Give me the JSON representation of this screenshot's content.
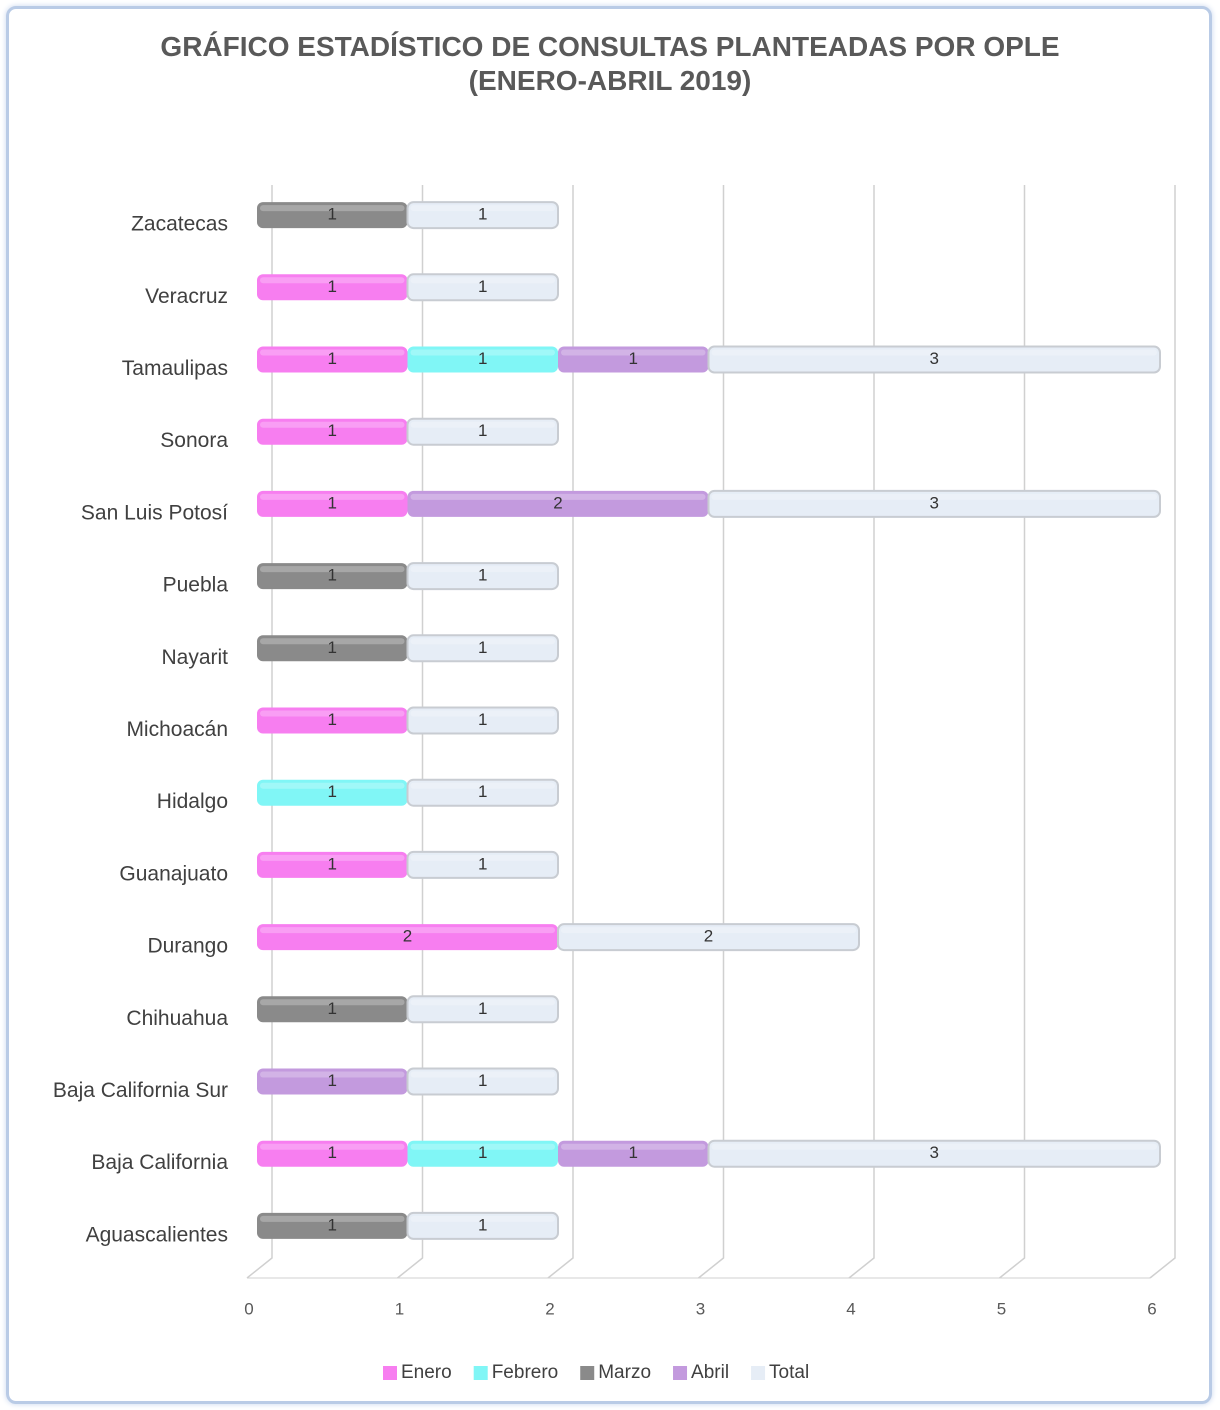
{
  "chart_data": {
    "type": "bar",
    "orientation": "horizontal",
    "stacked": true,
    "title": "GRÁFICO ESTADÍSTICO DE CONSULTAS PLANTEADAS POR OPLE",
    "subtitle": "(ENERO-ABRIL 2019)",
    "categories": [
      "Zacatecas",
      "Veracruz",
      "Tamaulipas",
      "Sonora",
      "San Luis Potosí",
      "Puebla",
      "Nayarit",
      "Michoacán",
      "Hidalgo",
      "Guanajuato",
      "Durango",
      "Chihuahua",
      "Baja California Sur",
      "Baja California",
      "Aguascalientes"
    ],
    "series": [
      {
        "name": "Enero",
        "color": "#f77ef0",
        "values": [
          null,
          1,
          1,
          1,
          1,
          null,
          null,
          1,
          null,
          1,
          2,
          null,
          null,
          1,
          null
        ]
      },
      {
        "name": "Febrero",
        "color": "#80f6f6",
        "values": [
          null,
          null,
          1,
          null,
          null,
          null,
          null,
          null,
          1,
          null,
          null,
          null,
          null,
          1,
          null
        ]
      },
      {
        "name": "Marzo",
        "color": "#8a8a8a",
        "values": [
          1,
          null,
          null,
          null,
          null,
          1,
          1,
          null,
          null,
          null,
          null,
          1,
          null,
          null,
          1
        ]
      },
      {
        "name": "Abril",
        "color": "#c39ade",
        "values": [
          null,
          null,
          1,
          null,
          2,
          null,
          null,
          null,
          null,
          null,
          null,
          null,
          1,
          1,
          null
        ]
      },
      {
        "name": "Total",
        "color": "#e6edf6",
        "values": [
          1,
          1,
          3,
          1,
          3,
          1,
          1,
          1,
          1,
          1,
          2,
          1,
          1,
          3,
          1
        ]
      }
    ],
    "xlim": [
      0,
      6
    ],
    "xticks": [
      0,
      1,
      2,
      3,
      4,
      5,
      6
    ],
    "grid": true,
    "legend": "bottom"
  }
}
